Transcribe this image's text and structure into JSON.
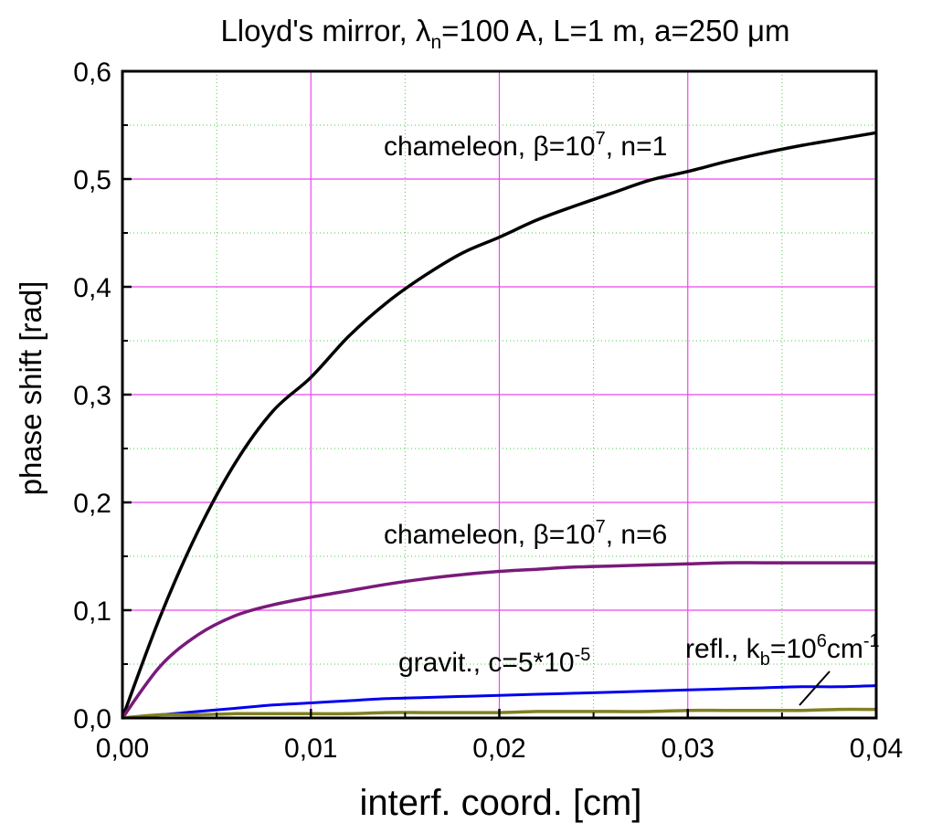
{
  "chart_data": {
    "type": "line",
    "title": {
      "prefix": "Lloyd's mirror, ",
      "lambda": "λ",
      "lambda_sub": "n",
      "middle": "=100 A, L=1 m, a=250 ",
      "mu": "μ",
      "suffix": "m"
    },
    "xlabel": "interf. coord. [cm]",
    "ylabel": "phase shift [rad]",
    "xlim": [
      0,
      0.04
    ],
    "ylim": [
      0,
      0.6
    ],
    "x_ticks": [
      {
        "value": 0.0,
        "label": "0,00"
      },
      {
        "value": 0.01,
        "label": "0,01"
      },
      {
        "value": 0.02,
        "label": "0,02"
      },
      {
        "value": 0.03,
        "label": "0,03"
      },
      {
        "value": 0.04,
        "label": "0,04"
      }
    ],
    "y_ticks": [
      {
        "value": 0.0,
        "label": "0,0"
      },
      {
        "value": 0.1,
        "label": "0,1"
      },
      {
        "value": 0.2,
        "label": "0,2"
      },
      {
        "value": 0.3,
        "label": "0,3"
      },
      {
        "value": 0.4,
        "label": "0,4"
      },
      {
        "value": 0.5,
        "label": "0,5"
      },
      {
        "value": 0.6,
        "label": "0,6"
      }
    ],
    "grid": {
      "major": true,
      "minor": true,
      "major_color": "#ee44ee",
      "minor_color": "#44cc44"
    },
    "series": [
      {
        "key": "chameleon-n1",
        "color": "#000000",
        "x": [
          0,
          0.002,
          0.004,
          0.006,
          0.008,
          0.01,
          0.012,
          0.014,
          0.016,
          0.018,
          0.02,
          0.022,
          0.024,
          0.026,
          0.028,
          0.03,
          0.032,
          0.034,
          0.036,
          0.038,
          0.04
        ],
        "y": [
          0,
          0.094,
          0.173,
          0.237,
          0.285,
          0.316,
          0.354,
          0.385,
          0.41,
          0.431,
          0.446,
          0.462,
          0.475,
          0.487,
          0.499,
          0.507,
          0.516,
          0.524,
          0.531,
          0.537,
          0.543
        ]
      },
      {
        "key": "chameleon-n6",
        "color": "#7a1a7a",
        "x": [
          0,
          0.002,
          0.004,
          0.006,
          0.008,
          0.01,
          0.012,
          0.014,
          0.016,
          0.018,
          0.02,
          0.022,
          0.024,
          0.026,
          0.028,
          0.03,
          0.032,
          0.034,
          0.036,
          0.038,
          0.04
        ],
        "y": [
          0,
          0.048,
          0.077,
          0.095,
          0.105,
          0.112,
          0.118,
          0.124,
          0.129,
          0.133,
          0.136,
          0.138,
          0.14,
          0.141,
          0.142,
          0.143,
          0.144,
          0.144,
          0.144,
          0.144,
          0.144
        ]
      },
      {
        "key": "gravit",
        "color": "#0000ee",
        "x": [
          0,
          0.002,
          0.004,
          0.006,
          0.008,
          0.01,
          0.012,
          0.014,
          0.016,
          0.018,
          0.02,
          0.022,
          0.024,
          0.026,
          0.028,
          0.03,
          0.032,
          0.034,
          0.036,
          0.038,
          0.04
        ],
        "y": [
          0,
          0.003,
          0.006,
          0.009,
          0.012,
          0.014,
          0.016,
          0.018,
          0.019,
          0.02,
          0.021,
          0.022,
          0.023,
          0.024,
          0.025,
          0.026,
          0.027,
          0.028,
          0.029,
          0.029,
          0.03
        ]
      },
      {
        "key": "refl",
        "color": "#808020",
        "x": [
          0,
          0.002,
          0.004,
          0.006,
          0.008,
          0.01,
          0.012,
          0.014,
          0.016,
          0.018,
          0.02,
          0.022,
          0.024,
          0.026,
          0.028,
          0.03,
          0.032,
          0.034,
          0.036,
          0.038,
          0.04
        ],
        "y": [
          0,
          0.003,
          0.003,
          0.004,
          0.004,
          0.004,
          0.004,
          0.005,
          0.005,
          0.005,
          0.005,
          0.006,
          0.006,
          0.006,
          0.006,
          0.007,
          0.007,
          0.007,
          0.007,
          0.008,
          0.008
        ]
      }
    ],
    "annotations": [
      {
        "key": "chameleon-n1",
        "prefix": "chameleon, ",
        "beta": "β",
        "eq": "=10",
        "sup": "7",
        "suffix": ", n=1"
      },
      {
        "key": "chameleon-n6",
        "prefix": "chameleon, ",
        "beta": "β",
        "eq": "=10",
        "sup": "7",
        "suffix": ", n=6"
      },
      {
        "key": "gravit",
        "text": "gravit., c=5*10",
        "sup": "-5"
      },
      {
        "key": "refl",
        "prefix": "refl., k",
        "sub": "b",
        "mid": "=10",
        "sup": "6",
        "unit": "cm",
        "sup2": "-1"
      }
    ]
  }
}
